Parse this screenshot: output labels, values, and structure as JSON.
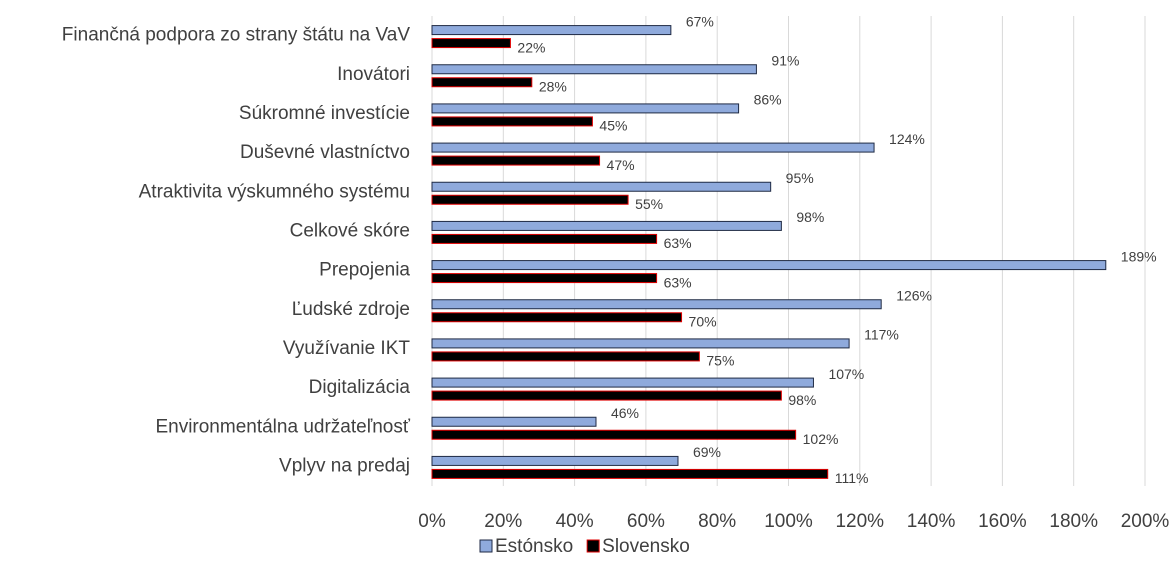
{
  "chart_data": {
    "type": "bar",
    "orientation": "horizontal",
    "categories": [
      "Finančná podpora zo strany štátu na VaV",
      "Inovátori",
      "Súkromné investície",
      "Duševné vlastníctvo",
      "Atraktivita výskumného systému",
      "Celkové skóre",
      "Prepojenia",
      "Ľudské zdroje",
      "Využívanie IKT",
      "Digitalizácia",
      "Environmentálna udržateľnosť",
      "Vplyv na predaj"
    ],
    "series": [
      {
        "name": "Estónsko",
        "color": "#8faadc",
        "edge": "#1f2a44",
        "values": [
          67,
          91,
          86,
          124,
          95,
          98,
          189,
          126,
          117,
          107,
          46,
          69
        ],
        "value_labels": [
          "67%",
          "91%",
          "86%",
          "124%",
          "95%",
          "98%",
          "189%",
          "126%",
          "117%",
          "107%",
          "46%",
          "69%"
        ]
      },
      {
        "name": "Slovensko",
        "color": "#000000",
        "edge": "#e00000",
        "values": [
          22,
          28,
          45,
          47,
          55,
          63,
          63,
          70,
          75,
          98,
          102,
          111
        ],
        "value_labels": [
          "22%",
          "28%",
          "45%",
          "47%",
          "55%",
          "63%",
          "63%",
          "70%",
          "75%",
          "98%",
          "102%",
          "111%"
        ]
      }
    ],
    "xlim": [
      0,
      200
    ],
    "xticks": [
      {
        "value": 0,
        "label": "0%"
      },
      {
        "value": 20,
        "label": "20%"
      },
      {
        "value": 40,
        "label": "40%"
      },
      {
        "value": 60,
        "label": "60%"
      },
      {
        "value": 80,
        "label": "80%"
      },
      {
        "value": 100,
        "label": "100%"
      },
      {
        "value": 120,
        "label": "120%"
      },
      {
        "value": 140,
        "label": "140%"
      },
      {
        "value": 160,
        "label": "160%"
      },
      {
        "value": 180,
        "label": "180%"
      },
      {
        "value": 200,
        "label": "200%"
      }
    ],
    "grid": true,
    "legend": "bottom"
  }
}
